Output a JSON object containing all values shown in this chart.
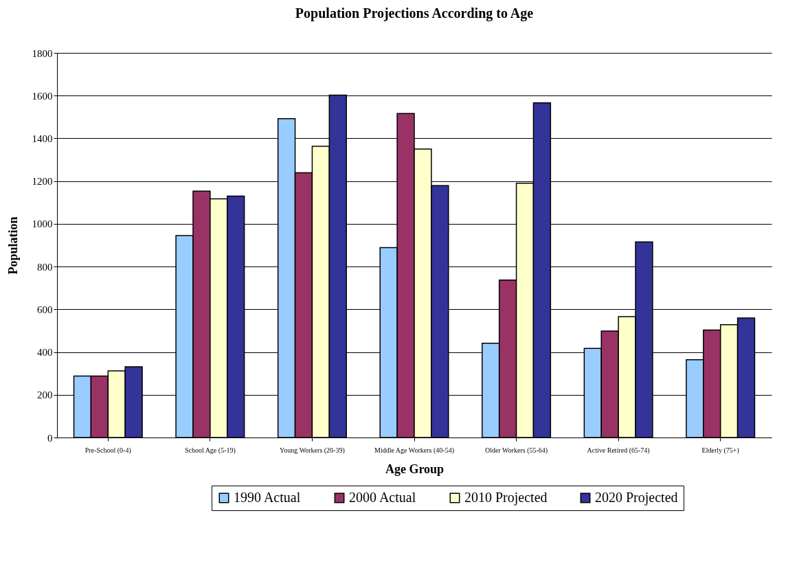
{
  "chart_data": {
    "type": "bar",
    "title": "Population Projections According to Age",
    "xlabel": "Age Group",
    "ylabel": "Population",
    "categories": [
      "Pre-School (0-4)",
      "School Age (5-19)",
      "Young Workers (20-39)",
      "Middle Age Workers (40-54)",
      "Older Workers (55-64)",
      "Active Retired (65-74)",
      "Elderly (75+)"
    ],
    "series": [
      {
        "name": "1990 Actual",
        "color": "#99ccff",
        "values": [
          288,
          945,
          1492,
          889,
          441,
          417,
          364
        ]
      },
      {
        "name": "2000 Actual",
        "color": "#993366",
        "values": [
          288,
          1153,
          1239,
          1516,
          737,
          498,
          503
        ]
      },
      {
        "name": "2010 Projected",
        "color": "#ffffcc",
        "values": [
          312,
          1117,
          1363,
          1350,
          1190,
          566,
          528
        ]
      },
      {
        "name": "2020 Projected",
        "color": "#333399",
        "values": [
          331,
          1130,
          1602,
          1179,
          1566,
          915,
          559
        ]
      }
    ],
    "ylim": [
      0,
      1800
    ],
    "yticks": [
      0,
      200,
      400,
      600,
      800,
      1000,
      1200,
      1400,
      1600,
      1800
    ],
    "grid": "y",
    "legend": "bottom"
  }
}
